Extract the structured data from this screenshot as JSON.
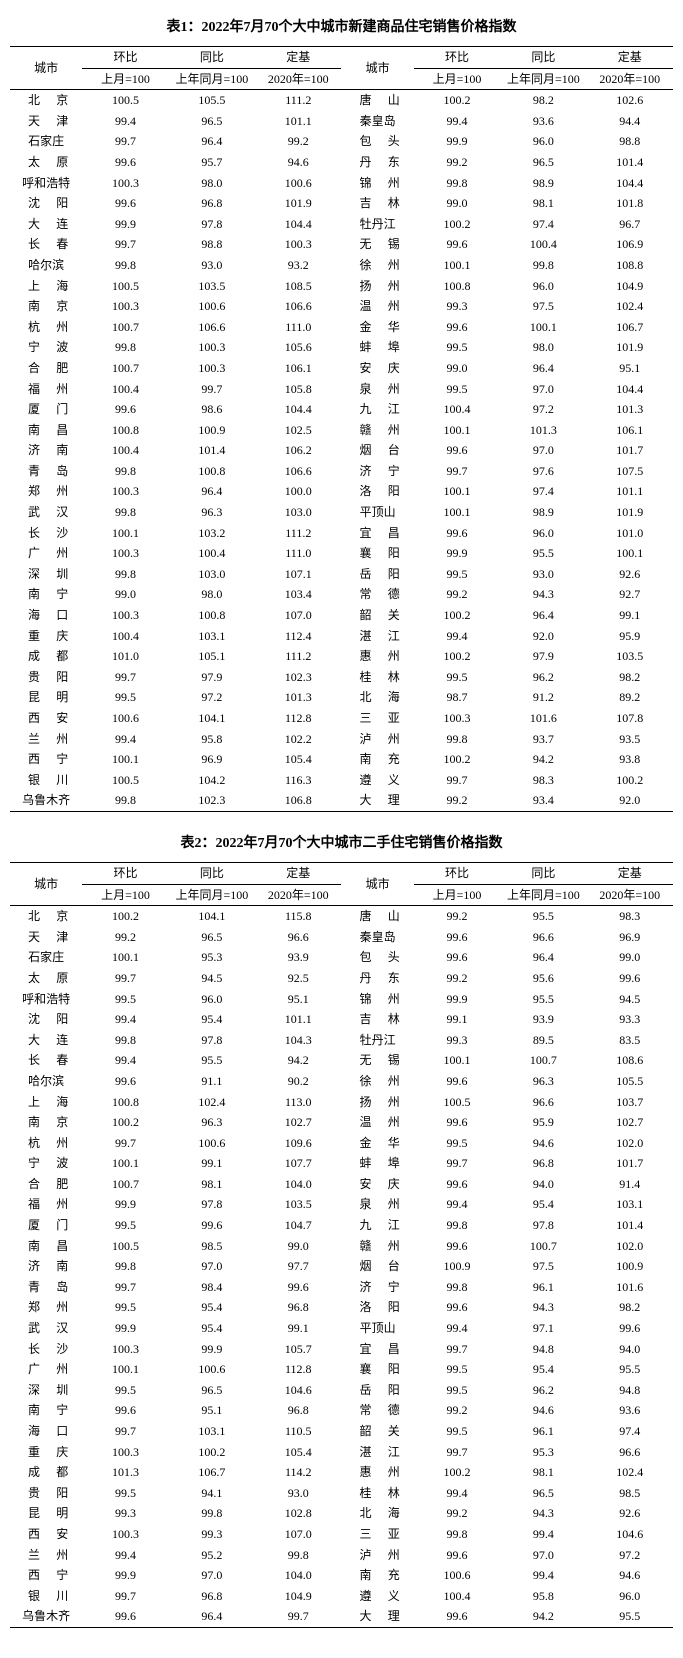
{
  "table1": {
    "title": "表1：2022年7月70个大中城市新建商品住宅销售价格指数",
    "headers": {
      "city": "城市",
      "mom": "环比",
      "mom_sub": "上月=100",
      "yoy": "同比",
      "yoy_sub": "上年同月=100",
      "base": "定基",
      "base_sub": "2020年=100"
    },
    "rows": [
      {
        "cl": "北　京",
        "a": "100.5",
        "b": "105.5",
        "c": "111.2",
        "cr": "唐　山",
        "d": "100.2",
        "e": "98.2",
        "f": "102.6"
      },
      {
        "cl": "天　津",
        "a": "99.4",
        "b": "96.5",
        "c": "101.1",
        "cr": "秦皇岛",
        "d": "99.4",
        "e": "93.6",
        "f": "94.4"
      },
      {
        "cl": "石家庄",
        "a": "99.7",
        "b": "96.4",
        "c": "99.2",
        "cr": "包　头",
        "d": "99.9",
        "e": "96.0",
        "f": "98.8"
      },
      {
        "cl": "太　原",
        "a": "99.6",
        "b": "95.7",
        "c": "94.6",
        "cr": "丹　东",
        "d": "99.2",
        "e": "96.5",
        "f": "101.4"
      },
      {
        "cl": "呼和浩特",
        "a": "100.3",
        "b": "98.0",
        "c": "100.6",
        "cr": "锦　州",
        "d": "99.8",
        "e": "98.9",
        "f": "104.4"
      },
      {
        "cl": "沈　阳",
        "a": "99.6",
        "b": "96.8",
        "c": "101.9",
        "cr": "吉　林",
        "d": "99.0",
        "e": "98.1",
        "f": "101.8"
      },
      {
        "cl": "大　连",
        "a": "99.9",
        "b": "97.8",
        "c": "104.4",
        "cr": "牡丹江",
        "d": "100.2",
        "e": "97.4",
        "f": "96.7"
      },
      {
        "cl": "长　春",
        "a": "99.7",
        "b": "98.8",
        "c": "100.3",
        "cr": "无　锡",
        "d": "99.6",
        "e": "100.4",
        "f": "106.9"
      },
      {
        "cl": "哈尔滨",
        "a": "99.8",
        "b": "93.0",
        "c": "93.2",
        "cr": "徐　州",
        "d": "100.1",
        "e": "99.8",
        "f": "108.8"
      },
      {
        "cl": "上　海",
        "a": "100.5",
        "b": "103.5",
        "c": "108.5",
        "cr": "扬　州",
        "d": "100.8",
        "e": "96.0",
        "f": "104.9"
      },
      {
        "cl": "南　京",
        "a": "100.3",
        "b": "100.6",
        "c": "106.6",
        "cr": "温　州",
        "d": "99.3",
        "e": "97.5",
        "f": "102.4"
      },
      {
        "cl": "杭　州",
        "a": "100.7",
        "b": "106.6",
        "c": "111.0",
        "cr": "金　华",
        "d": "99.6",
        "e": "100.1",
        "f": "106.7"
      },
      {
        "cl": "宁　波",
        "a": "99.8",
        "b": "100.3",
        "c": "105.6",
        "cr": "蚌　埠",
        "d": "99.5",
        "e": "98.0",
        "f": "101.9"
      },
      {
        "cl": "合　肥",
        "a": "100.7",
        "b": "100.3",
        "c": "106.1",
        "cr": "安　庆",
        "d": "99.0",
        "e": "96.4",
        "f": "95.1"
      },
      {
        "cl": "福　州",
        "a": "100.4",
        "b": "99.7",
        "c": "105.8",
        "cr": "泉　州",
        "d": "99.5",
        "e": "97.0",
        "f": "104.4"
      },
      {
        "cl": "厦　门",
        "a": "99.6",
        "b": "98.6",
        "c": "104.4",
        "cr": "九　江",
        "d": "100.4",
        "e": "97.2",
        "f": "101.3"
      },
      {
        "cl": "南　昌",
        "a": "100.8",
        "b": "100.9",
        "c": "102.5",
        "cr": "赣　州",
        "d": "100.1",
        "e": "101.3",
        "f": "106.1"
      },
      {
        "cl": "济　南",
        "a": "100.4",
        "b": "101.4",
        "c": "106.2",
        "cr": "烟　台",
        "d": "99.6",
        "e": "97.0",
        "f": "101.7"
      },
      {
        "cl": "青　岛",
        "a": "99.8",
        "b": "100.8",
        "c": "106.6",
        "cr": "济　宁",
        "d": "99.7",
        "e": "97.6",
        "f": "107.5"
      },
      {
        "cl": "郑　州",
        "a": "100.3",
        "b": "96.4",
        "c": "100.0",
        "cr": "洛　阳",
        "d": "100.1",
        "e": "97.4",
        "f": "101.1"
      },
      {
        "cl": "武　汉",
        "a": "99.8",
        "b": "96.3",
        "c": "103.0",
        "cr": "平顶山",
        "d": "100.1",
        "e": "98.9",
        "f": "101.9"
      },
      {
        "cl": "长　沙",
        "a": "100.1",
        "b": "103.2",
        "c": "111.2",
        "cr": "宜　昌",
        "d": "99.6",
        "e": "96.0",
        "f": "101.0"
      },
      {
        "cl": "广　州",
        "a": "100.3",
        "b": "100.4",
        "c": "111.0",
        "cr": "襄　阳",
        "d": "99.9",
        "e": "95.5",
        "f": "100.1"
      },
      {
        "cl": "深　圳",
        "a": "99.8",
        "b": "103.0",
        "c": "107.1",
        "cr": "岳　阳",
        "d": "99.5",
        "e": "93.0",
        "f": "92.6"
      },
      {
        "cl": "南　宁",
        "a": "99.0",
        "b": "98.0",
        "c": "103.4",
        "cr": "常　德",
        "d": "99.2",
        "e": "94.3",
        "f": "92.7"
      },
      {
        "cl": "海　口",
        "a": "100.3",
        "b": "100.8",
        "c": "107.0",
        "cr": "韶　关",
        "d": "100.2",
        "e": "96.4",
        "f": "99.1"
      },
      {
        "cl": "重　庆",
        "a": "100.4",
        "b": "103.1",
        "c": "112.4",
        "cr": "湛　江",
        "d": "99.4",
        "e": "92.0",
        "f": "95.9"
      },
      {
        "cl": "成　都",
        "a": "101.0",
        "b": "105.1",
        "c": "111.2",
        "cr": "惠　州",
        "d": "100.2",
        "e": "97.9",
        "f": "103.5"
      },
      {
        "cl": "贵　阳",
        "a": "99.7",
        "b": "97.9",
        "c": "102.3",
        "cr": "桂　林",
        "d": "99.5",
        "e": "96.2",
        "f": "98.2"
      },
      {
        "cl": "昆　明",
        "a": "99.5",
        "b": "97.2",
        "c": "101.3",
        "cr": "北　海",
        "d": "98.7",
        "e": "91.2",
        "f": "89.2"
      },
      {
        "cl": "西　安",
        "a": "100.6",
        "b": "104.1",
        "c": "112.8",
        "cr": "三　亚",
        "d": "100.3",
        "e": "101.6",
        "f": "107.8"
      },
      {
        "cl": "兰　州",
        "a": "99.4",
        "b": "95.8",
        "c": "102.2",
        "cr": "泸　州",
        "d": "99.8",
        "e": "93.7",
        "f": "93.5"
      },
      {
        "cl": "西　宁",
        "a": "100.1",
        "b": "96.9",
        "c": "105.4",
        "cr": "南　充",
        "d": "100.2",
        "e": "94.2",
        "f": "93.8"
      },
      {
        "cl": "银　川",
        "a": "100.5",
        "b": "104.2",
        "c": "116.3",
        "cr": "遵　义",
        "d": "99.7",
        "e": "98.3",
        "f": "100.2"
      },
      {
        "cl": "乌鲁木齐",
        "a": "99.8",
        "b": "102.3",
        "c": "106.8",
        "cr": "大　理",
        "d": "99.2",
        "e": "93.4",
        "f": "92.0"
      }
    ]
  },
  "table2": {
    "title": "表2：2022年7月70个大中城市二手住宅销售价格指数",
    "headers": {
      "city": "城市",
      "mom": "环比",
      "mom_sub": "上月=100",
      "yoy": "同比",
      "yoy_sub": "上年同月=100",
      "base": "定基",
      "base_sub": "2020年=100"
    },
    "rows": [
      {
        "cl": "北　京",
        "a": "100.2",
        "b": "104.1",
        "c": "115.8",
        "cr": "唐　山",
        "d": "99.2",
        "e": "95.5",
        "f": "98.3"
      },
      {
        "cl": "天　津",
        "a": "99.2",
        "b": "96.5",
        "c": "96.6",
        "cr": "秦皇岛",
        "d": "99.6",
        "e": "96.6",
        "f": "96.9"
      },
      {
        "cl": "石家庄",
        "a": "100.1",
        "b": "95.3",
        "c": "93.9",
        "cr": "包　头",
        "d": "99.6",
        "e": "96.4",
        "f": "99.0"
      },
      {
        "cl": "太　原",
        "a": "99.7",
        "b": "94.5",
        "c": "92.5",
        "cr": "丹　东",
        "d": "99.2",
        "e": "95.6",
        "f": "99.6"
      },
      {
        "cl": "呼和浩特",
        "a": "99.5",
        "b": "96.0",
        "c": "95.1",
        "cr": "锦　州",
        "d": "99.9",
        "e": "95.5",
        "f": "94.5"
      },
      {
        "cl": "沈　阳",
        "a": "99.4",
        "b": "95.4",
        "c": "101.1",
        "cr": "吉　林",
        "d": "99.1",
        "e": "93.9",
        "f": "93.3"
      },
      {
        "cl": "大　连",
        "a": "99.8",
        "b": "97.8",
        "c": "104.3",
        "cr": "牡丹江",
        "d": "99.3",
        "e": "89.5",
        "f": "83.5"
      },
      {
        "cl": "长　春",
        "a": "99.4",
        "b": "95.5",
        "c": "94.2",
        "cr": "无　锡",
        "d": "100.1",
        "e": "100.7",
        "f": "108.6"
      },
      {
        "cl": "哈尔滨",
        "a": "99.6",
        "b": "91.1",
        "c": "90.2",
        "cr": "徐　州",
        "d": "99.6",
        "e": "96.3",
        "f": "105.5"
      },
      {
        "cl": "上　海",
        "a": "100.8",
        "b": "102.4",
        "c": "113.0",
        "cr": "扬　州",
        "d": "100.5",
        "e": "96.6",
        "f": "103.7"
      },
      {
        "cl": "南　京",
        "a": "100.2",
        "b": "96.3",
        "c": "102.7",
        "cr": "温　州",
        "d": "99.6",
        "e": "95.9",
        "f": "102.7"
      },
      {
        "cl": "杭　州",
        "a": "99.7",
        "b": "100.6",
        "c": "109.6",
        "cr": "金　华",
        "d": "99.5",
        "e": "94.6",
        "f": "102.0"
      },
      {
        "cl": "宁　波",
        "a": "100.1",
        "b": "99.1",
        "c": "107.7",
        "cr": "蚌　埠",
        "d": "99.7",
        "e": "96.8",
        "f": "101.7"
      },
      {
        "cl": "合　肥",
        "a": "100.7",
        "b": "98.1",
        "c": "104.0",
        "cr": "安　庆",
        "d": "99.6",
        "e": "94.0",
        "f": "91.4"
      },
      {
        "cl": "福　州",
        "a": "99.9",
        "b": "97.8",
        "c": "103.5",
        "cr": "泉　州",
        "d": "99.4",
        "e": "95.4",
        "f": "103.1"
      },
      {
        "cl": "厦　门",
        "a": "99.5",
        "b": "99.6",
        "c": "104.7",
        "cr": "九　江",
        "d": "99.8",
        "e": "97.8",
        "f": "101.4"
      },
      {
        "cl": "南　昌",
        "a": "100.5",
        "b": "98.5",
        "c": "99.0",
        "cr": "赣　州",
        "d": "99.6",
        "e": "100.7",
        "f": "102.0"
      },
      {
        "cl": "济　南",
        "a": "99.8",
        "b": "97.0",
        "c": "97.7",
        "cr": "烟　台",
        "d": "100.9",
        "e": "97.5",
        "f": "100.9"
      },
      {
        "cl": "青　岛",
        "a": "99.7",
        "b": "98.4",
        "c": "99.6",
        "cr": "济　宁",
        "d": "99.8",
        "e": "96.1",
        "f": "101.6"
      },
      {
        "cl": "郑　州",
        "a": "99.5",
        "b": "95.4",
        "c": "96.8",
        "cr": "洛　阳",
        "d": "99.6",
        "e": "94.3",
        "f": "98.2"
      },
      {
        "cl": "武　汉",
        "a": "99.9",
        "b": "95.4",
        "c": "99.1",
        "cr": "平顶山",
        "d": "99.4",
        "e": "97.1",
        "f": "99.6"
      },
      {
        "cl": "长　沙",
        "a": "100.3",
        "b": "99.9",
        "c": "105.7",
        "cr": "宜　昌",
        "d": "99.7",
        "e": "94.8",
        "f": "94.0"
      },
      {
        "cl": "广　州",
        "a": "100.1",
        "b": "100.6",
        "c": "112.8",
        "cr": "襄　阳",
        "d": "99.5",
        "e": "95.4",
        "f": "95.5"
      },
      {
        "cl": "深　圳",
        "a": "99.5",
        "b": "96.5",
        "c": "104.6",
        "cr": "岳　阳",
        "d": "99.5",
        "e": "96.2",
        "f": "94.8"
      },
      {
        "cl": "南　宁",
        "a": "99.6",
        "b": "95.1",
        "c": "96.8",
        "cr": "常　德",
        "d": "99.2",
        "e": "94.6",
        "f": "93.6"
      },
      {
        "cl": "海　口",
        "a": "99.7",
        "b": "103.1",
        "c": "110.5",
        "cr": "韶　关",
        "d": "99.5",
        "e": "96.1",
        "f": "97.4"
      },
      {
        "cl": "重　庆",
        "a": "100.3",
        "b": "100.2",
        "c": "105.4",
        "cr": "湛　江",
        "d": "99.7",
        "e": "95.3",
        "f": "96.6"
      },
      {
        "cl": "成　都",
        "a": "101.3",
        "b": "106.7",
        "c": "114.2",
        "cr": "惠　州",
        "d": "100.2",
        "e": "98.1",
        "f": "102.4"
      },
      {
        "cl": "贵　阳",
        "a": "99.5",
        "b": "94.1",
        "c": "93.0",
        "cr": "桂　林",
        "d": "99.4",
        "e": "96.5",
        "f": "98.5"
      },
      {
        "cl": "昆　明",
        "a": "99.3",
        "b": "99.8",
        "c": "102.8",
        "cr": "北　海",
        "d": "99.2",
        "e": "94.3",
        "f": "92.6"
      },
      {
        "cl": "西　安",
        "a": "100.3",
        "b": "99.3",
        "c": "107.0",
        "cr": "三　亚",
        "d": "99.8",
        "e": "99.4",
        "f": "104.6"
      },
      {
        "cl": "兰　州",
        "a": "99.4",
        "b": "95.2",
        "c": "99.8",
        "cr": "泸　州",
        "d": "99.6",
        "e": "97.0",
        "f": "97.2"
      },
      {
        "cl": "西　宁",
        "a": "99.9",
        "b": "97.0",
        "c": "104.0",
        "cr": "南　充",
        "d": "100.6",
        "e": "99.4",
        "f": "94.6"
      },
      {
        "cl": "银　川",
        "a": "99.7",
        "b": "96.8",
        "c": "104.9",
        "cr": "遵　义",
        "d": "100.4",
        "e": "95.8",
        "f": "96.0"
      },
      {
        "cl": "乌鲁木齐",
        "a": "99.6",
        "b": "96.4",
        "c": "99.7",
        "cr": "大　理",
        "d": "99.6",
        "e": "94.2",
        "f": "95.5"
      }
    ]
  }
}
